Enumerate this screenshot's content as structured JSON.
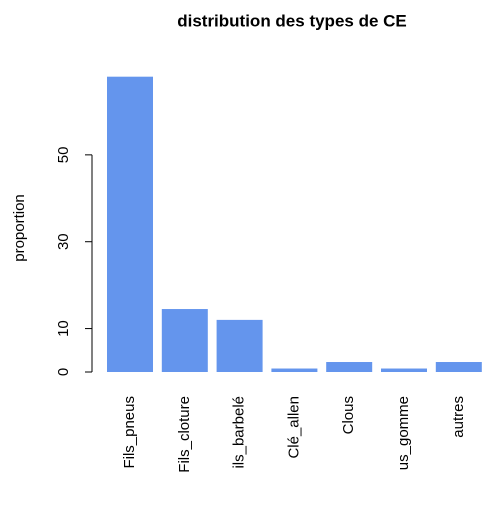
{
  "chart_data": {
    "type": "bar",
    "title": "distribution des types de CE",
    "y_label": "proportion",
    "categories": [
      "Fils_pneus",
      "Fils_cloture",
      "ils_barbelé",
      "Clé_allen",
      "Clous",
      "us_gomme",
      "autres"
    ],
    "values": [
      68,
      14.5,
      12,
      0.8,
      2.3,
      0.8,
      2.3
    ],
    "color": "#6495ed",
    "ylim": [
      0,
      70
    ],
    "yticks": [
      0,
      10,
      30,
      50
    ],
    "grid": false
  }
}
